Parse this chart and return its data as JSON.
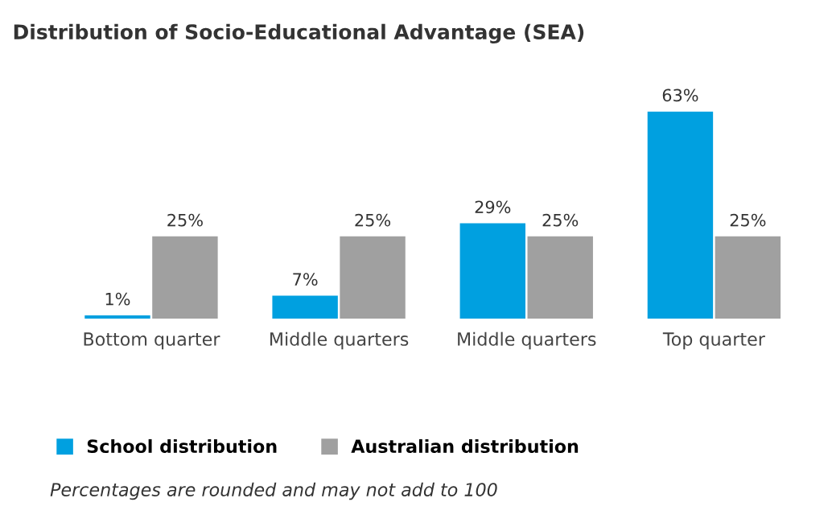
{
  "chart_data": {
    "type": "bar",
    "title": "Distribution of Socio-Educational Advantage (SEA)",
    "categories": [
      "Bottom quarter",
      "Middle quarters",
      "Middle quarters",
      "Top quarter"
    ],
    "series": [
      {
        "name": "School distribution",
        "color": "#00a0e0",
        "values": [
          1,
          7,
          29,
          63
        ],
        "value_labels": [
          "1%",
          "7%",
          "29%",
          "63%"
        ]
      },
      {
        "name": "Australian distribution",
        "color": "#a0a0a0",
        "values": [
          25,
          25,
          25,
          25
        ],
        "value_labels": [
          "25%",
          "25%",
          "25%",
          "25%"
        ]
      }
    ],
    "grid": false,
    "legend": "bottom left",
    "tick_labels": "x",
    "annotations": [
      "Percentages are rounded and may not add to 100"
    ]
  }
}
